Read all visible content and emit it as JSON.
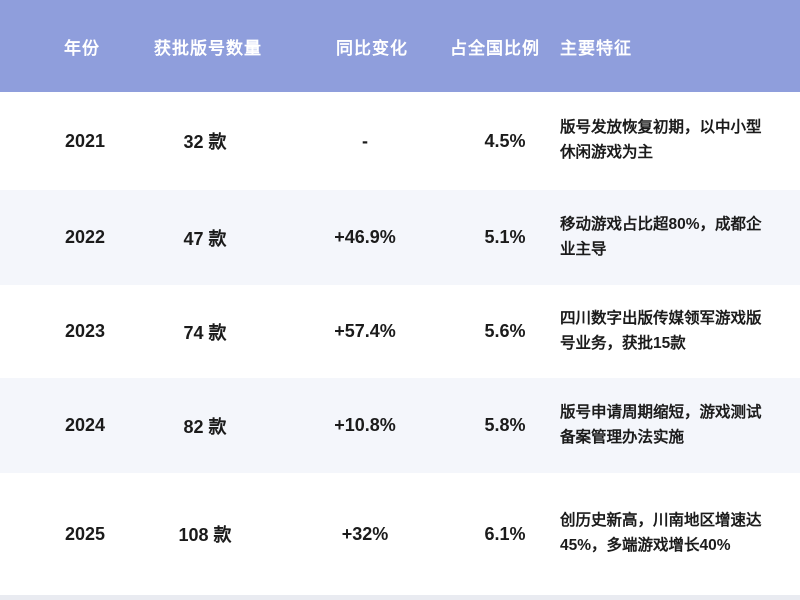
{
  "chart_data": {
    "type": "table",
    "columns": [
      "年份",
      "获批版号数量",
      "同比变化",
      "占全国比例",
      "主要特征"
    ],
    "rows": [
      [
        "2021",
        "32 款",
        "-",
        "4.5%",
        "版号发放恢复初期，以中小型休闲游戏为主"
      ],
      [
        "2022",
        "47 款",
        "+46.9%",
        "5.1%",
        "移动游戏占比超80%，成都企业主导"
      ],
      [
        "2023",
        "74 款",
        "+57.4%",
        "5.6%",
        "四川数字出版传媒领军游戏版号业务，获批15款"
      ],
      [
        "2024",
        "82 款",
        "+10.8%",
        "5.8%",
        "版号申请周期缩短，游戏测试备案管理办法实施"
      ],
      [
        "2025",
        "108 款",
        "+32%",
        "6.1%",
        "创历史新高，川南地区增速达45%，多端游戏增长40%"
      ]
    ]
  },
  "colors": {
    "header_bg": "#8f9edc",
    "row_alt_bg": "#f4f6fb",
    "footer_strip": "#e9ebf1",
    "text": "#1b1b1b",
    "header_text": "#ffffff"
  }
}
